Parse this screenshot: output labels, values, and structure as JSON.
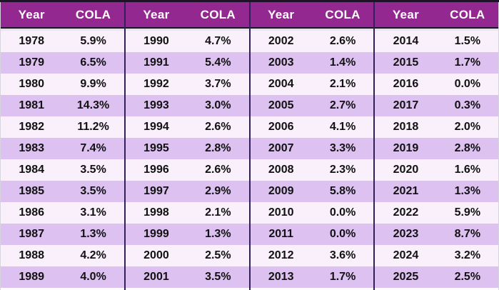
{
  "colors": {
    "header_bg": "#932990",
    "header_text": "#FFFFFF",
    "row_light": "#F9F0FB",
    "row_dark": "#DDC2F1",
    "group_separator": "#32205A",
    "header_border": "#201329",
    "body_text": "#111111"
  },
  "table": {
    "headers": [
      "Year",
      "COLA"
    ],
    "groups": [
      {
        "rows": [
          {
            "year": "1978",
            "cola": "5.9%"
          },
          {
            "year": "1979",
            "cola": "6.5%"
          },
          {
            "year": "1980",
            "cola": "9.9%"
          },
          {
            "year": "1981",
            "cola": "14.3%"
          },
          {
            "year": "1982",
            "cola": "11.2%"
          },
          {
            "year": "1983",
            "cola": "7.4%"
          },
          {
            "year": "1984",
            "cola": "3.5%"
          },
          {
            "year": "1985",
            "cola": "3.5%"
          },
          {
            "year": "1986",
            "cola": "3.1%"
          },
          {
            "year": "1987",
            "cola": "1.3%"
          },
          {
            "year": "1988",
            "cola": "4.2%"
          },
          {
            "year": "1989",
            "cola": "4.0%"
          }
        ]
      },
      {
        "rows": [
          {
            "year": "1990",
            "cola": "4.7%"
          },
          {
            "year": "1991",
            "cola": "5.4%"
          },
          {
            "year": "1992",
            "cola": "3.7%"
          },
          {
            "year": "1993",
            "cola": "3.0%"
          },
          {
            "year": "1994",
            "cola": "2.6%"
          },
          {
            "year": "1995",
            "cola": "2.8%"
          },
          {
            "year": "1996",
            "cola": "2.6%"
          },
          {
            "year": "1997",
            "cola": "2.9%"
          },
          {
            "year": "1998",
            "cola": "2.1%"
          },
          {
            "year": "1999",
            "cola": "1.3%"
          },
          {
            "year": "2000",
            "cola": "2.5%"
          },
          {
            "year": "2001",
            "cola": "3.5%"
          }
        ]
      },
      {
        "rows": [
          {
            "year": "2002",
            "cola": "2.6%"
          },
          {
            "year": "2003",
            "cola": "1.4%"
          },
          {
            "year": "2004",
            "cola": "2.1%"
          },
          {
            "year": "2005",
            "cola": "2.7%"
          },
          {
            "year": "2006",
            "cola": "4.1%"
          },
          {
            "year": "2007",
            "cola": "3.3%"
          },
          {
            "year": "2008",
            "cola": "2.3%"
          },
          {
            "year": "2009",
            "cola": "5.8%"
          },
          {
            "year": "2010",
            "cola": "0.0%"
          },
          {
            "year": "2011",
            "cola": "0.0%"
          },
          {
            "year": "2012",
            "cola": "3.6%"
          },
          {
            "year": "2013",
            "cola": "1.7%"
          }
        ]
      },
      {
        "rows": [
          {
            "year": "2014",
            "cola": "1.5%"
          },
          {
            "year": "2015",
            "cola": "1.7%"
          },
          {
            "year": "2016",
            "cola": "0.0%"
          },
          {
            "year": "2017",
            "cola": "0.3%"
          },
          {
            "year": "2018",
            "cola": "2.0%"
          },
          {
            "year": "2019",
            "cola": "2.8%"
          },
          {
            "year": "2020",
            "cola": "1.6%"
          },
          {
            "year": "2021",
            "cola": "1.3%"
          },
          {
            "year": "2022",
            "cola": "5.9%"
          },
          {
            "year": "2023",
            "cola": "8.7%"
          },
          {
            "year": "2024",
            "cola": "3.2%"
          },
          {
            "year": "2025",
            "cola": "2.5%"
          }
        ]
      }
    ]
  },
  "chart_data": {
    "type": "table",
    "title": "",
    "columns": [
      "Year",
      "COLA"
    ],
    "rows": [
      [
        "1978",
        "5.9%"
      ],
      [
        "1979",
        "6.5%"
      ],
      [
        "1980",
        "9.9%"
      ],
      [
        "1981",
        "14.3%"
      ],
      [
        "1982",
        "11.2%"
      ],
      [
        "1983",
        "7.4%"
      ],
      [
        "1984",
        "3.5%"
      ],
      [
        "1985",
        "3.5%"
      ],
      [
        "1986",
        "3.1%"
      ],
      [
        "1987",
        "1.3%"
      ],
      [
        "1988",
        "4.2%"
      ],
      [
        "1989",
        "4.0%"
      ],
      [
        "1990",
        "4.7%"
      ],
      [
        "1991",
        "5.4%"
      ],
      [
        "1992",
        "3.7%"
      ],
      [
        "1993",
        "3.0%"
      ],
      [
        "1994",
        "2.6%"
      ],
      [
        "1995",
        "2.8%"
      ],
      [
        "1996",
        "2.6%"
      ],
      [
        "1997",
        "2.9%"
      ],
      [
        "1998",
        "2.1%"
      ],
      [
        "1999",
        "1.3%"
      ],
      [
        "2000",
        "2.5%"
      ],
      [
        "2001",
        "3.5%"
      ],
      [
        "2002",
        "2.6%"
      ],
      [
        "2003",
        "1.4%"
      ],
      [
        "2004",
        "2.1%"
      ],
      [
        "2005",
        "2.7%"
      ],
      [
        "2006",
        "4.1%"
      ],
      [
        "2007",
        "3.3%"
      ],
      [
        "2008",
        "2.3%"
      ],
      [
        "2009",
        "5.8%"
      ],
      [
        "2010",
        "0.0%"
      ],
      [
        "2011",
        "0.0%"
      ],
      [
        "2012",
        "3.6%"
      ],
      [
        "2013",
        "1.7%"
      ],
      [
        "2014",
        "1.5%"
      ],
      [
        "2015",
        "1.7%"
      ],
      [
        "2016",
        "0.0%"
      ],
      [
        "2017",
        "0.3%"
      ],
      [
        "2018",
        "2.0%"
      ],
      [
        "2019",
        "2.8%"
      ],
      [
        "2020",
        "1.6%"
      ],
      [
        "2021",
        "1.3%"
      ],
      [
        "2022",
        "5.9%"
      ],
      [
        "2023",
        "8.7%"
      ],
      [
        "2024",
        "3.2%"
      ],
      [
        "2025",
        "2.5%"
      ]
    ],
    "layout": {
      "column_groups": 4,
      "rows_per_group": 12,
      "striped": true
    }
  }
}
